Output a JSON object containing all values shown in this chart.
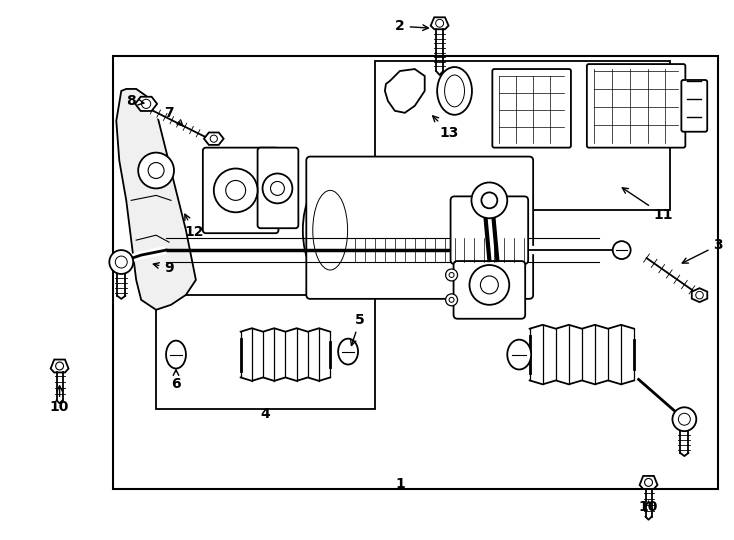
{
  "fig_width": 7.34,
  "fig_height": 5.4,
  "dpi": 100,
  "bg_color": "#ffffff"
}
